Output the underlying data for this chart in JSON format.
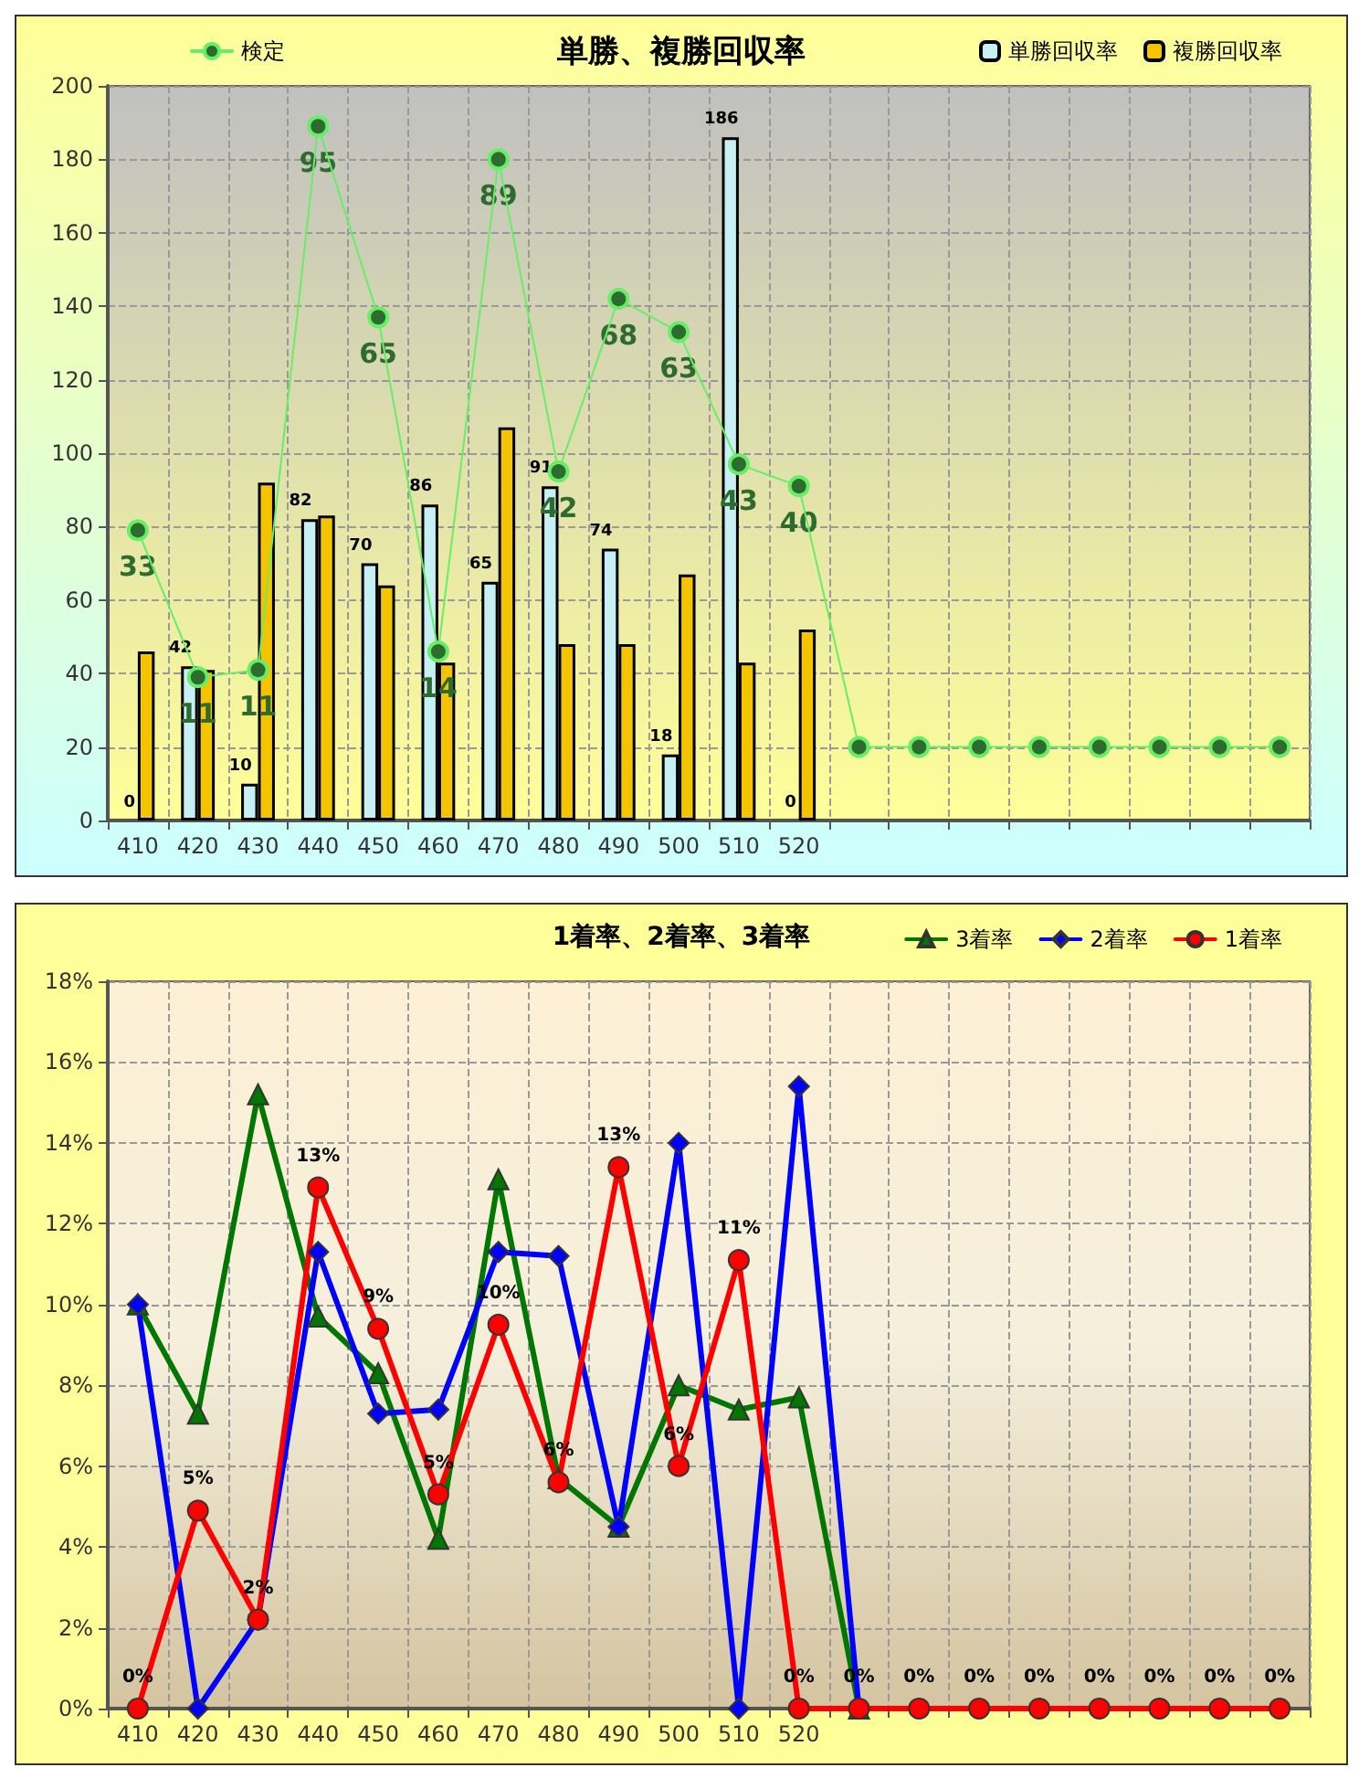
{
  "chart_data": [
    {
      "type": "bar",
      "title": "単勝、複勝回収率",
      "categories": [
        "410",
        "420",
        "430",
        "440",
        "450",
        "460",
        "470",
        "480",
        "490",
        "500",
        "510",
        "520",
        null,
        null,
        null,
        null,
        null,
        null,
        null,
        null
      ],
      "series": [
        {
          "name": "単勝回収率",
          "color": "#c6f0f4",
          "values": [
            0,
            42,
            10,
            82,
            70,
            86,
            65,
            91,
            74,
            18,
            186,
            0,
            null,
            null,
            null,
            null,
            null,
            null,
            null,
            null
          ],
          "value_labels": [
            "0",
            "42",
            "10",
            "82",
            "70",
            "86",
            "65",
            "91",
            "74",
            "18",
            "186",
            "0",
            null,
            null,
            null,
            null,
            null,
            null,
            null,
            null
          ]
        },
        {
          "name": "複勝回収率",
          "color": "#f5c400",
          "values": [
            46,
            41,
            92,
            83,
            64,
            43,
            107,
            48,
            48,
            67,
            43,
            52,
            null,
            null,
            null,
            null,
            null,
            null,
            null,
            null
          ]
        },
        {
          "name": "検定",
          "type": "line",
          "color": "#66ee66",
          "marker": "circle",
          "values": [
            79,
            39,
            41,
            189,
            137,
            46,
            180,
            95,
            142,
            133,
            97,
            91,
            20,
            20,
            20,
            20,
            20,
            20,
            20,
            20
          ]
        }
      ],
      "annotations": [
        {
          "text": "33",
          "x": "410",
          "y": 79
        },
        {
          "text": "11",
          "x": "420",
          "y": 39
        },
        {
          "text": "11",
          "x": "430",
          "y": 41
        },
        {
          "text": "95",
          "x": "440",
          "y": 189
        },
        {
          "text": "65",
          "x": "450",
          "y": 137
        },
        {
          "text": "14",
          "x": "460",
          "y": 46
        },
        {
          "text": "89",
          "x": "470",
          "y": 180
        },
        {
          "text": "42",
          "x": "480",
          "y": 95
        },
        {
          "text": "68",
          "x": "490",
          "y": 142
        },
        {
          "text": "63",
          "x": "500",
          "y": 133
        },
        {
          "text": "43",
          "x": "510",
          "y": 97
        },
        {
          "text": "40",
          "x": "520",
          "y": 91
        }
      ],
      "ylim": [
        0,
        200
      ],
      "yticks": [
        0,
        20,
        40,
        60,
        80,
        100,
        120,
        140,
        160,
        180,
        200
      ],
      "grid": true,
      "legend": "top"
    },
    {
      "type": "line",
      "title": "1着率、2着率、3着率",
      "categories": [
        "410",
        "420",
        "430",
        "440",
        "450",
        "460",
        "470",
        "480",
        "490",
        "500",
        "510",
        "520",
        null,
        null,
        null,
        null,
        null,
        null,
        null,
        null
      ],
      "series": [
        {
          "name": "3着率",
          "color": "#007700",
          "marker": "triangle",
          "values": [
            10,
            7.3,
            15.2,
            9.7,
            8.3,
            4.2,
            13.1,
            5.7,
            4.5,
            8.0,
            7.4,
            7.7,
            0,
            null,
            null,
            null,
            null,
            null,
            null,
            null
          ]
        },
        {
          "name": "2着率",
          "color": "#0000ff",
          "marker": "diamond",
          "values": [
            10,
            0,
            2.2,
            11.3,
            7.3,
            7.4,
            11.3,
            11.2,
            4.5,
            14.0,
            0,
            15.4,
            0,
            null,
            null,
            null,
            null,
            null,
            null,
            null
          ]
        },
        {
          "name": "1着率",
          "color": "#ff0000",
          "marker": "circle",
          "values": [
            0,
            4.9,
            2.2,
            12.9,
            9.4,
            5.3,
            9.5,
            5.6,
            13.4,
            6.0,
            11.1,
            0,
            0,
            0,
            0,
            0,
            0,
            0,
            0,
            0
          ],
          "value_labels": [
            "0%",
            "5%",
            "2%",
            "13%",
            "9%",
            "5%",
            "10%",
            "6%",
            "13%",
            "6%",
            "11%",
            "0%",
            "0%",
            "0%",
            "0%",
            "0%",
            "0%",
            "0%",
            "0%",
            "0%"
          ]
        }
      ],
      "ylim": [
        0,
        18
      ],
      "yticks": [
        {
          "value": 0,
          "label": "0%"
        },
        {
          "value": 2,
          "label": "2%"
        },
        {
          "value": 4,
          "label": "4%"
        },
        {
          "value": 6,
          "label": "6%"
        },
        {
          "value": 8,
          "label": "8%"
        },
        {
          "value": 10,
          "label": "10%"
        },
        {
          "value": 12,
          "label": "12%"
        },
        {
          "value": 14,
          "label": "14%"
        },
        {
          "value": 16,
          "label": "16%"
        },
        {
          "value": 18,
          "label": "18%"
        }
      ],
      "grid": true,
      "legend": "top right",
      "line_style": "solid"
    }
  ]
}
